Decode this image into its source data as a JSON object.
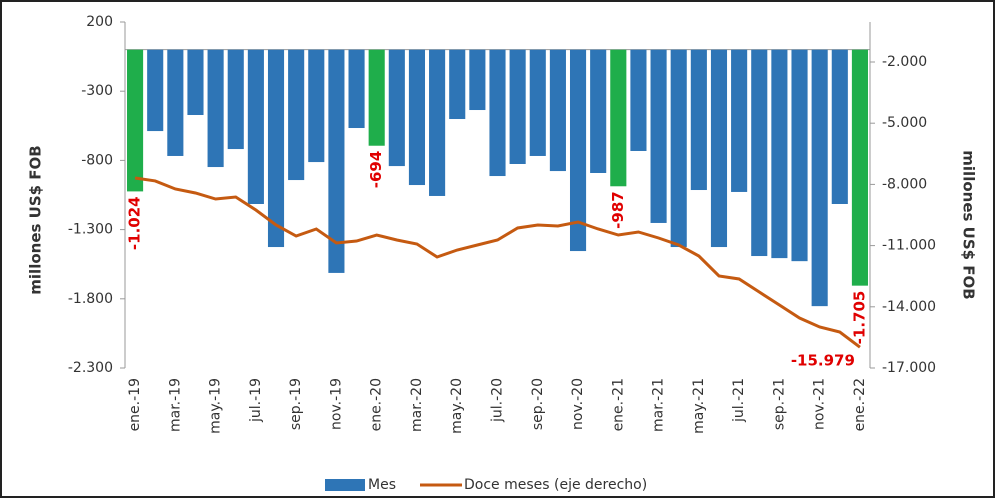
{
  "chart_data": {
    "type": "bar-line",
    "categories": [
      "ene.-19",
      null,
      "mar.-19",
      null,
      "may.-19",
      null,
      "jul.-19",
      null,
      "sep.-19",
      null,
      "nov.-19",
      null,
      "ene.-20",
      null,
      "mar.-20",
      null,
      "may.-20",
      null,
      "jul.-20",
      null,
      "sep.-20",
      null,
      "nov.-20",
      null,
      "ene.-21",
      null,
      "mar.-21",
      null,
      "may.-21",
      null,
      "jul.-21",
      null,
      "sep.-21",
      null,
      "nov.-21",
      null,
      "ene.-22"
    ],
    "series": [
      {
        "name": "Mes",
        "type": "bar",
        "color": "#2e75b6",
        "colors": [
          "#1fae4b",
          "#2e75b6",
          "#2e75b6",
          "#2e75b6",
          "#2e75b6",
          "#2e75b6",
          "#2e75b6",
          "#2e75b6",
          "#2e75b6",
          "#2e75b6",
          "#2e75b6",
          "#2e75b6",
          "#1fae4b",
          "#2e75b6",
          "#2e75b6",
          "#2e75b6",
          "#2e75b6",
          "#2e75b6",
          "#2e75b6",
          "#2e75b6",
          "#2e75b6",
          "#2e75b6",
          "#2e75b6",
          "#2e75b6",
          "#1fae4b",
          "#2e75b6",
          "#2e75b6",
          "#2e75b6",
          "#2e75b6",
          "#2e75b6",
          "#2e75b6",
          "#2e75b6",
          "#2e75b6",
          "#2e75b6",
          "#2e75b6",
          "#2e75b6",
          "#1fae4b"
        ],
        "values": [
          -1024,
          -588,
          -768,
          -472,
          -848,
          -718,
          -1115,
          -1426,
          -942,
          -812,
          -1613,
          -566,
          -694,
          -841,
          -978,
          -1057,
          -501,
          -436,
          -913,
          -826,
          -768,
          -877,
          -1455,
          -891,
          -987,
          -732,
          -1252,
          -1426,
          -1014,
          -1426,
          -1028,
          -1491,
          -1506,
          -1528,
          -1853,
          -1115,
          -1705
        ],
        "value_labels": [
          "-1.024",
          null,
          null,
          null,
          null,
          null,
          null,
          null,
          null,
          null,
          null,
          null,
          "-694",
          null,
          null,
          null,
          null,
          null,
          null,
          null,
          null,
          null,
          null,
          null,
          "-987",
          null,
          null,
          null,
          null,
          null,
          null,
          null,
          null,
          null,
          null,
          null,
          "-1.705"
        ]
      },
      {
        "name": "Doce meses (eje derecho)",
        "type": "line",
        "axis": "y2",
        "color": "#c55a11",
        "values": [
          -7686,
          -7830,
          -8225,
          -8420,
          -8716,
          -8618,
          -9255,
          -9990,
          -10530,
          -10186,
          -10873,
          -10775,
          -10481,
          -10726,
          -10922,
          -11559,
          -11216,
          -10971,
          -10726,
          -10137,
          -9990,
          -10039,
          -9843,
          -10186,
          -10481,
          -10333,
          -10627,
          -10971,
          -11510,
          -12490,
          -12637,
          -13275,
          -13912,
          -14549,
          -14990,
          -15235,
          -15979
        ],
        "value_labels": [
          null,
          null,
          null,
          null,
          null,
          null,
          null,
          null,
          null,
          null,
          null,
          null,
          null,
          null,
          null,
          null,
          null,
          null,
          null,
          null,
          null,
          null,
          null,
          null,
          null,
          null,
          null,
          null,
          null,
          null,
          null,
          null,
          null,
          null,
          null,
          null,
          "-15.979"
        ]
      }
    ],
    "ylabel": "millones US$ FOB",
    "y2label": "millones US$ FOB",
    "ylim": [
      -2300,
      200
    ],
    "yticks": [
      200,
      -300,
      {
        "value": -800,
        "label": "-800"
      },
      {
        "value": -1300,
        "label": "-1.300"
      },
      {
        "value": -1800,
        "label": "-1.800"
      },
      {
        "value": -2300,
        "label": "-2.300"
      }
    ],
    "y2lim": [
      -17000,
      -39
    ],
    "y2ticks": [
      {
        "value": -2000,
        "label": "-2.000"
      },
      {
        "value": -5000,
        "label": "-5.000"
      },
      {
        "value": -8000,
        "label": "-8.000"
      },
      {
        "value": -11000,
        "label": "-11.000"
      },
      {
        "value": -14000,
        "label": "-14.000"
      },
      {
        "value": -17000,
        "label": "-17.000"
      }
    ],
    "legend": "bottom"
  }
}
